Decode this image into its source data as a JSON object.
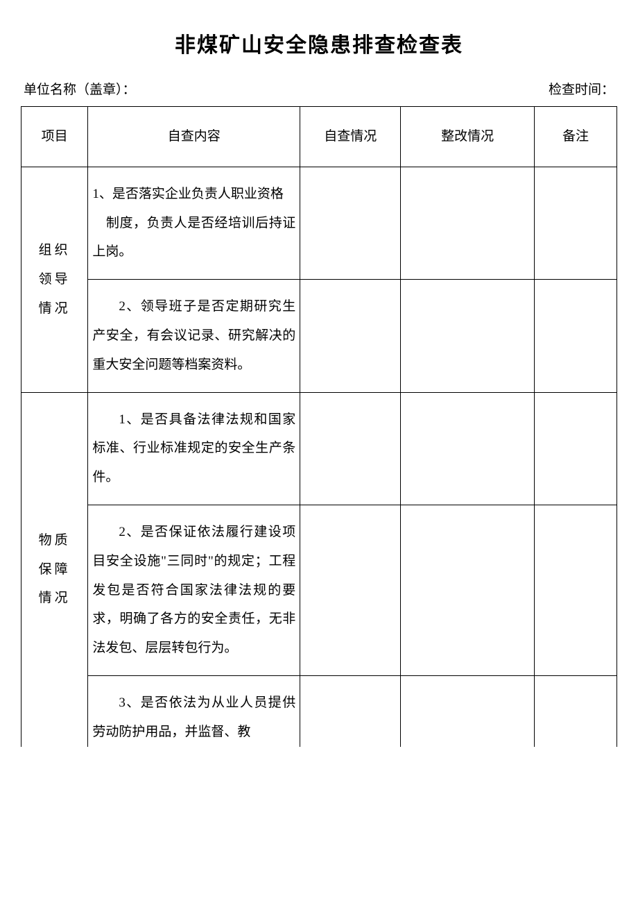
{
  "doc": {
    "title": "非煤矿山安全隐患排查检查表",
    "unit_label": "单位名称（盖章）：",
    "check_time_label": "检查时间："
  },
  "columns": {
    "project": "项目",
    "content": "自查内容",
    "check": "自查情况",
    "rectify": "整改情况",
    "note": "备注"
  },
  "sections": [
    {
      "category": "组织领导情况",
      "rows": [
        {
          "content_html": "<p class=\"first-line\">1、是否落实企业负责人职业资格</p><p class=\"first-line\">　制度，负责人是否经培训后持证上岗。</p>",
          "check": "",
          "rectify": "",
          "note": ""
        },
        {
          "content_html": "<p>2、领导班子是否定期研究生产安全，有会议记录、研究解决的重大安全问题等档案资料。</p>",
          "check": "",
          "rectify": "",
          "note": ""
        }
      ]
    },
    {
      "category": "物质保障情况",
      "rows": [
        {
          "content_html": "<p>1、是否具备法律法规和国家标准、行业标准规定的安全生产条件。</p>",
          "check": "",
          "rectify": "",
          "note": ""
        },
        {
          "content_html": "<p>2、是否保证依法履行建设项目安全设施\"三同时\"的规定；工程发包是否符合国家法律法规的要求，明确了各方的安全责任，无非法发包、层层转包行为。</p>",
          "check": "",
          "rectify": "",
          "note": ""
        },
        {
          "content_html": "<p>3、是否依法为从业人员提供劳动防护用品，并监督、教</p>",
          "check": "",
          "rectify": "",
          "note": "",
          "truncated": true
        }
      ]
    }
  ],
  "style": {
    "background_color": "#ffffff",
    "text_color": "#000000",
    "border_color": "#000000",
    "title_fontsize": 30,
    "body_fontsize": 19,
    "font_family": "SimSun"
  }
}
